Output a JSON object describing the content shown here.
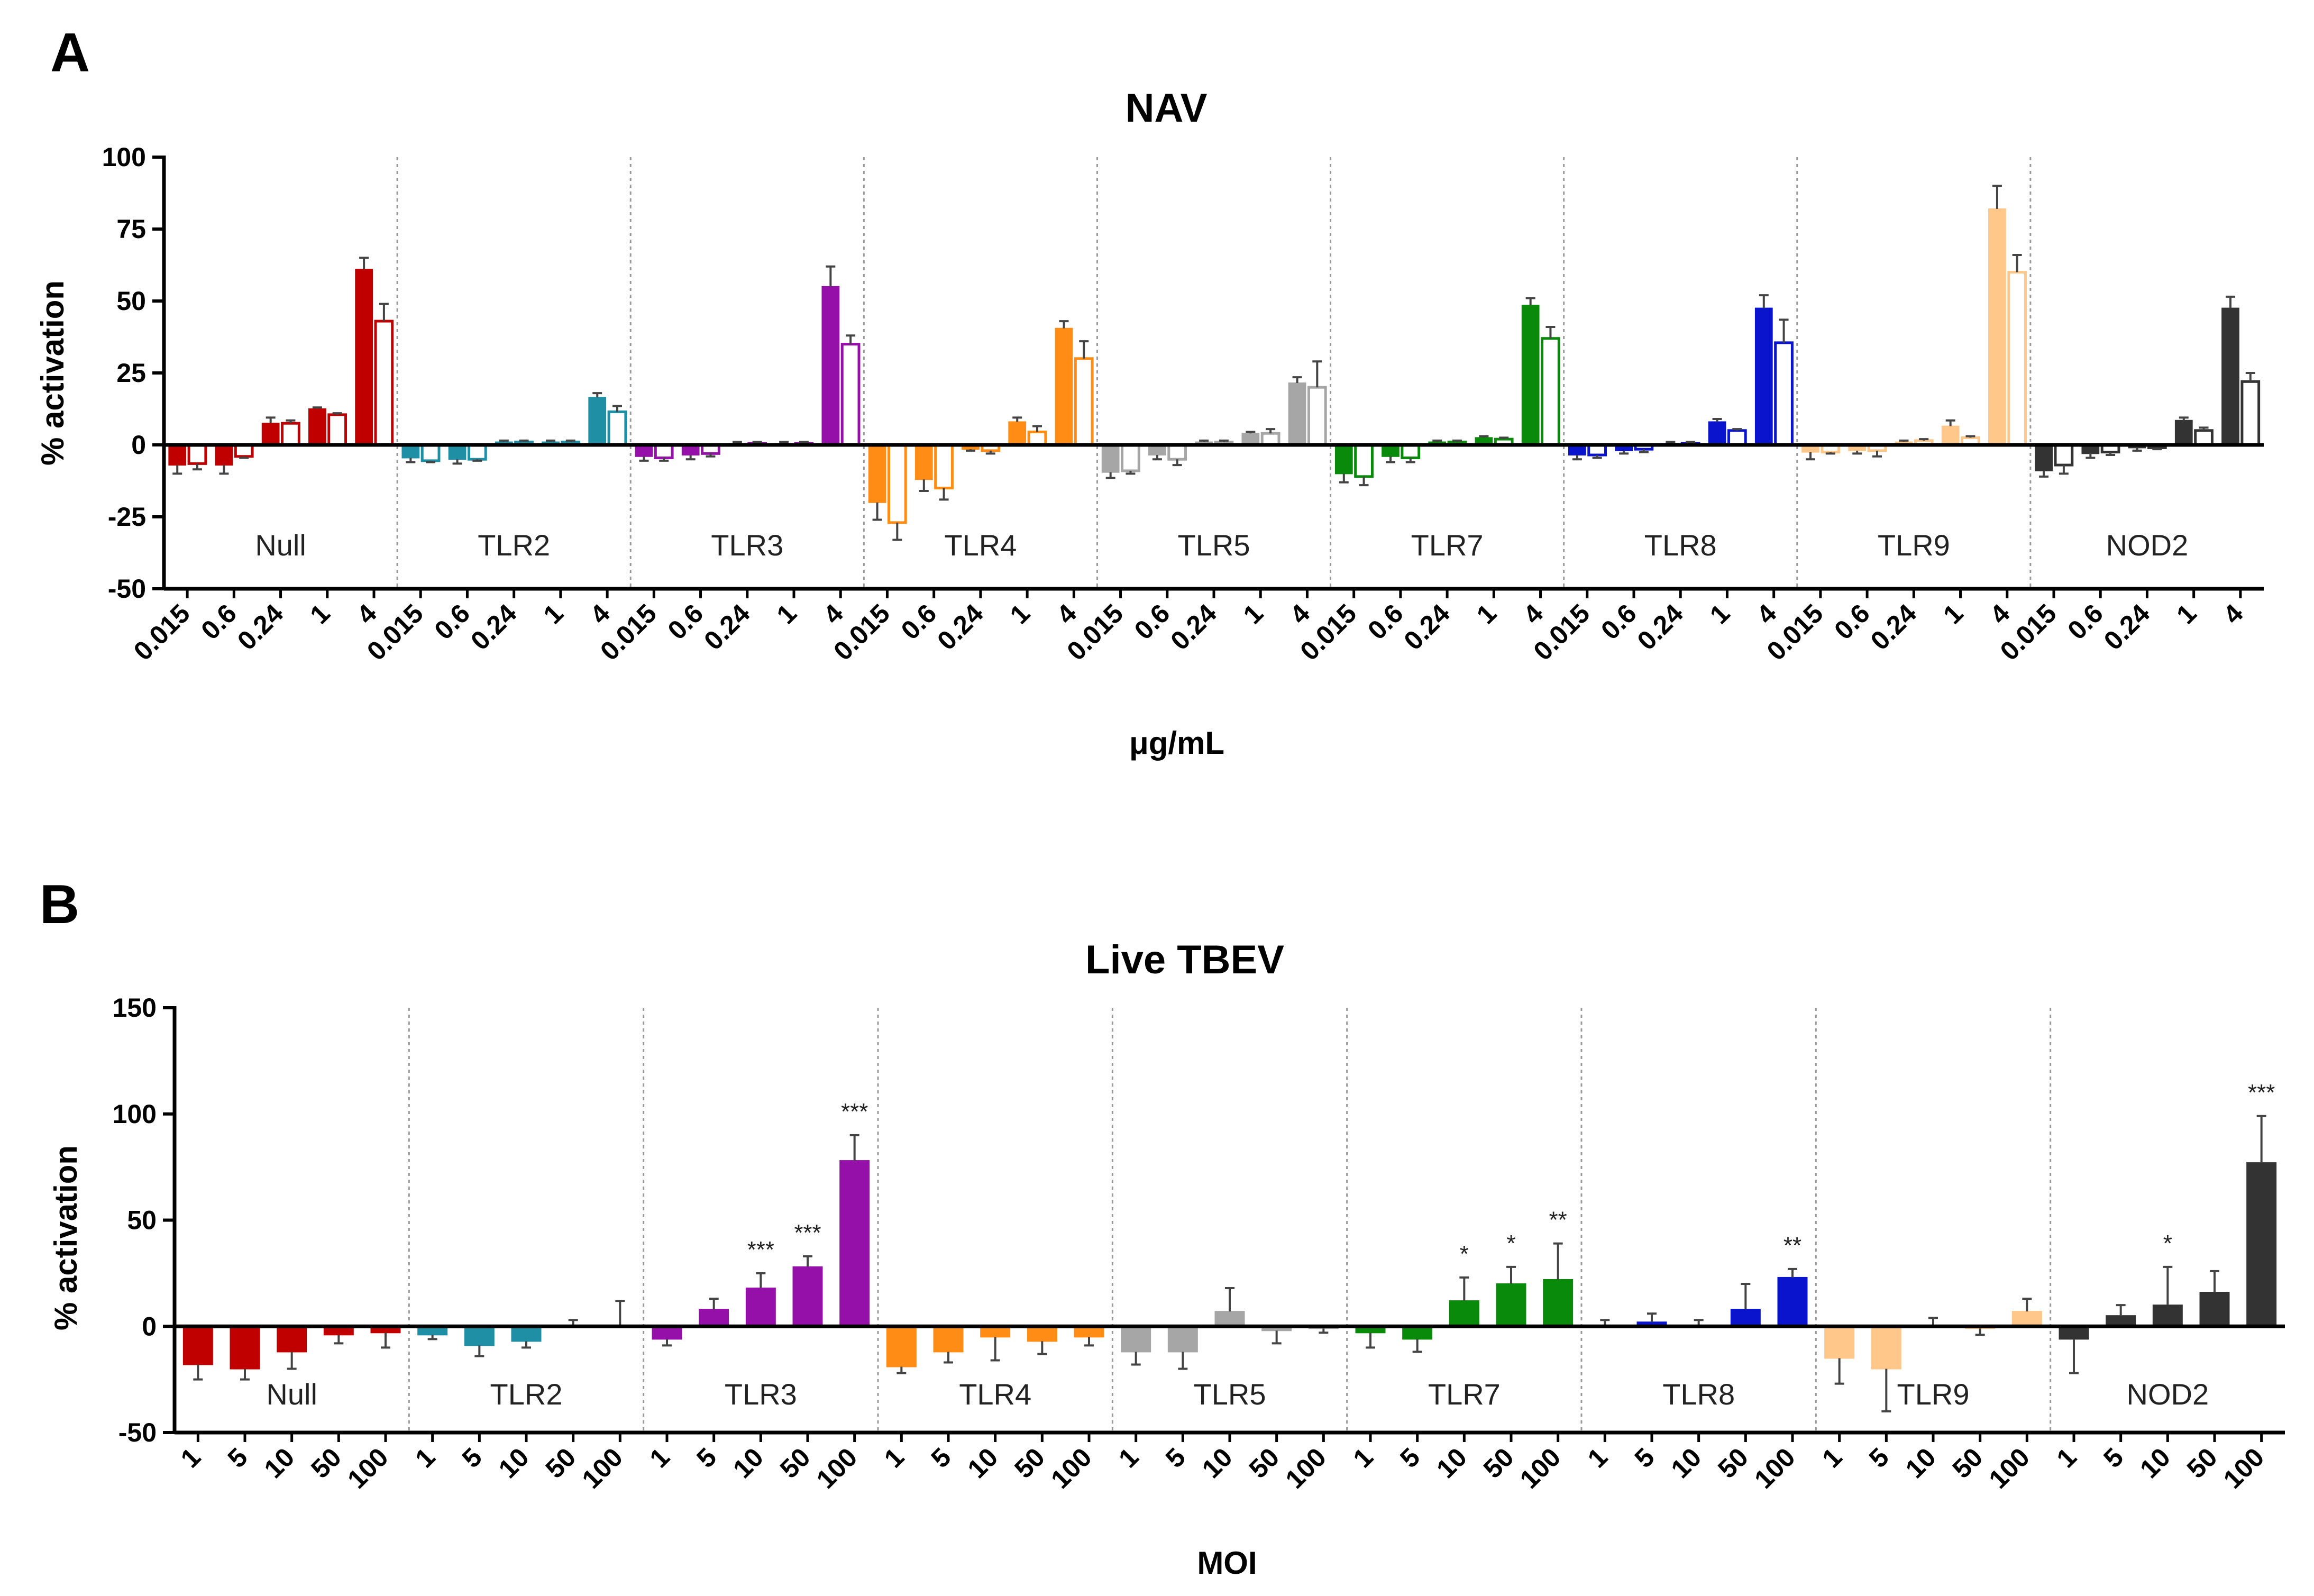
{
  "figure": {
    "colors": {
      "Null": "#c00000",
      "TLR2": "#1e8fa5",
      "TLR3": "#9510a8",
      "TLR4": "#ff8c14",
      "TLR5": "#a6a6a6",
      "TLR7": "#0a8a0a",
      "TLR8": "#0a14cc",
      "TLR9": "#ffc78a",
      "NOD2": "#333333"
    }
  },
  "chart_data": [
    {
      "panel": "A",
      "type": "bar",
      "title": "NAV",
      "ylabel": "% activation",
      "xlabel": "μg/mL",
      "ylim": [
        -50,
        100
      ],
      "yticks": [
        "100",
        "75",
        "50",
        "25",
        "0",
        "-25",
        "-50"
      ],
      "groups": [
        "Null",
        "TLR2",
        "TLR3",
        "TLR4",
        "TLR5",
        "TLR7",
        "TLR8",
        "TLR9",
        "NOD2"
      ],
      "categories": [
        "0.015",
        "0.6",
        "0.24",
        "1",
        "4"
      ],
      "series": [
        {
          "name": "filled",
          "groups": {
            "Null": [
              -7,
              -7,
              7.5,
              12.5,
              61
            ],
            "TLR2": [
              -4.5,
              -5,
              1,
              1,
              16.5
            ],
            "TLR3": [
              -4,
              -3.5,
              0.5,
              0.5,
              55
            ],
            "TLR4": [
              -20,
              -12,
              -1.5,
              8,
              40.5
            ],
            "TLR5": [
              -9.5,
              -3.5,
              1,
              4,
              21.5
            ],
            "TLR7": [
              -10,
              -4,
              1,
              2.5,
              48.5
            ],
            "TLR8": [
              -3.5,
              -2,
              0.5,
              8,
              47.5
            ],
            "TLR9": [
              -2.5,
              -2,
              1,
              6.5,
              82
            ],
            "NOD2": [
              -9,
              -3,
              -1,
              8.5,
              47.5
            ]
          }
        },
        {
          "name": "open",
          "groups": {
            "Null": [
              -6.5,
              -4,
              7.5,
              10.5,
              43
            ],
            "TLR2": [
              -5.5,
              -5,
              1,
              1,
              11.5
            ],
            "TLR3": [
              -4.5,
              -3,
              0.5,
              0.5,
              35
            ],
            "TLR4": [
              -27,
              -15,
              -2,
              4.5,
              30
            ],
            "TLR5": [
              -9,
              -5,
              1,
              4,
              20
            ],
            "TLR7": [
              -11,
              -4.5,
              1,
              2,
              37
            ],
            "TLR8": [
              -3.5,
              -1.5,
              0.5,
              5,
              35.5
            ],
            "TLR9": [
              -2.5,
              -2,
              1.5,
              2.5,
              60
            ],
            "NOD2": [
              -7,
              -2.5,
              -1,
              5,
              22
            ]
          }
        }
      ],
      "errors": {
        "filled": {
          "Null": [
            3,
            3,
            2,
            0.5,
            4
          ],
          "TLR2": [
            1.5,
            1.5,
            0.5,
            0.5,
            1.5
          ],
          "TLR3": [
            1.5,
            1.5,
            0.5,
            0.5,
            7
          ],
          "TLR4": [
            6,
            4,
            0.5,
            1.5,
            2.5
          ],
          "TLR5": [
            2,
            1.5,
            0.5,
            0.5,
            2
          ],
          "TLR7": [
            3,
            2,
            0.5,
            0.5,
            2.5
          ],
          "TLR8": [
            1.5,
            1,
            0.5,
            1,
            4.5
          ],
          "TLR9": [
            2.5,
            1,
            0.5,
            2,
            8
          ],
          "NOD2": [
            2,
            1.5,
            1,
            1,
            4
          ]
        },
        "open": {
          "Null": [
            2,
            0.5,
            1,
            0.5,
            6
          ],
          "TLR2": [
            0.5,
            0.5,
            0.5,
            0.5,
            2
          ],
          "TLR3": [
            1,
            1,
            0.5,
            0.5,
            3
          ],
          "TLR4": [
            6,
            4,
            1,
            2,
            6
          ],
          "TLR5": [
            1,
            2,
            0.5,
            1.5,
            9
          ],
          "TLR7": [
            3,
            1.5,
            0.5,
            0.5,
            4
          ],
          "TLR8": [
            1,
            1,
            0.5,
            0.5,
            8
          ],
          "TLR9": [
            0.5,
            2,
            0.5,
            0.5,
            6
          ],
          "NOD2": [
            3,
            1,
            0.5,
            1,
            3
          ]
        }
      }
    },
    {
      "panel": "B",
      "type": "bar",
      "title": "Live TBEV",
      "ylabel": "% activation",
      "xlabel": "MOI",
      "ylim": [
        -50,
        150
      ],
      "yticks": [
        "150",
        "100",
        "50",
        "0",
        "-50"
      ],
      "groups": [
        "Null",
        "TLR2",
        "TLR3",
        "TLR4",
        "TLR5",
        "TLR7",
        "TLR8",
        "TLR9",
        "NOD2"
      ],
      "categories": [
        "1",
        "5",
        "10",
        "50",
        "100"
      ],
      "series": [
        {
          "name": "mean",
          "groups": {
            "Null": [
              -18,
              -20,
              -12,
              -4,
              -3
            ],
            "TLR2": [
              -4,
              -9,
              -7,
              0,
              0
            ],
            "TLR3": [
              -6,
              8,
              18,
              28,
              78
            ],
            "TLR4": [
              -19,
              -12,
              -5,
              -7,
              -5
            ],
            "TLR5": [
              -12,
              -12,
              7,
              -2,
              -1
            ],
            "TLR7": [
              -3,
              -6,
              12,
              20,
              22
            ],
            "TLR8": [
              0,
              2,
              0,
              8,
              23
            ],
            "TLR9": [
              -15,
              -20,
              0,
              -1,
              7
            ],
            "NOD2": [
              -6,
              5,
              10,
              16,
              77
            ]
          }
        }
      ],
      "errors": {
        "Null": [
          7,
          5,
          8,
          4,
          7
        ],
        "TLR2": [
          2,
          5,
          3,
          3,
          12
        ],
        "TLR3": [
          3,
          5,
          7,
          5,
          12
        ],
        "TLR4": [
          3,
          5,
          11,
          6,
          4
        ],
        "TLR5": [
          6,
          8,
          11,
          6,
          2
        ],
        "TLR7": [
          7,
          6,
          11,
          8,
          17
        ],
        "TLR8": [
          3,
          4,
          3,
          12,
          4
        ],
        "TLR9": [
          12,
          20,
          4,
          3,
          6
        ],
        "NOD2": [
          16,
          5,
          18,
          10,
          22
        ]
      },
      "significance": {
        "TLR3": [
          "",
          "",
          "***",
          "***",
          "***"
        ],
        "TLR7": [
          "",
          "",
          "*",
          "*",
          "**"
        ],
        "TLR8": [
          "",
          "",
          "",
          "",
          "**"
        ],
        "NOD2": [
          "",
          "",
          "*",
          "",
          "***"
        ]
      }
    }
  ]
}
